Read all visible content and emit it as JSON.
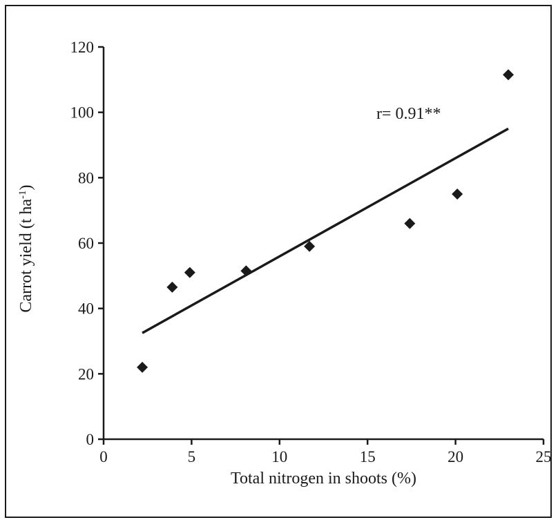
{
  "chart_data": {
    "type": "scatter",
    "xlabel": "Total nitrogen in shoots (%)",
    "ylabel_main": "Carrot yield (t ha",
    "ylabel_sup": "-1",
    "ylabel_close": ")",
    "xlim": [
      0,
      25
    ],
    "ylim": [
      0,
      120
    ],
    "x_ticks": [
      0,
      5,
      10,
      15,
      20,
      25
    ],
    "y_ticks": [
      0,
      20,
      40,
      60,
      80,
      100,
      120
    ],
    "grid": false,
    "legend": "none",
    "points": [
      {
        "x": 2.2,
        "y": 22
      },
      {
        "x": 3.9,
        "y": 46.5
      },
      {
        "x": 4.9,
        "y": 51
      },
      {
        "x": 8.1,
        "y": 51.5
      },
      {
        "x": 11.7,
        "y": 59
      },
      {
        "x": 17.4,
        "y": 66
      },
      {
        "x": 20.1,
        "y": 75
      },
      {
        "x": 23.0,
        "y": 111.5
      }
    ],
    "trendline": {
      "x": [
        2.2,
        23.0
      ],
      "y": [
        32.5,
        95
      ]
    },
    "annotation": {
      "text": "r= 0.91**",
      "x": 15.5,
      "y": 98
    },
    "marker_color": "#1a1a1a",
    "line_color": "#1a1a1a"
  }
}
